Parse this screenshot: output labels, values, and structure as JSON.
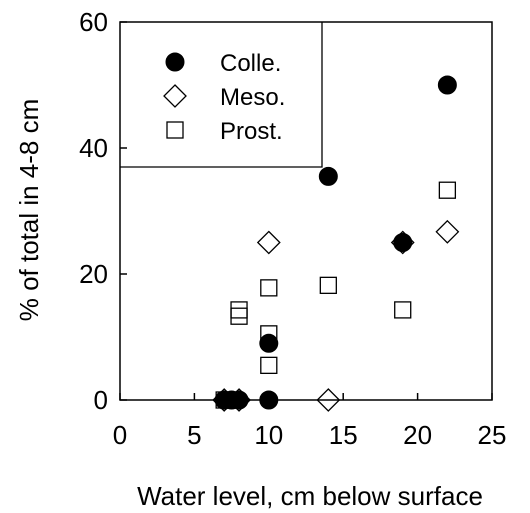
{
  "chart_data": {
    "type": "scatter",
    "xlabel": "Water level, cm below surface",
    "ylabel": "% of total in 4-8 cm",
    "xlim": [
      0,
      25
    ],
    "ylim": [
      0,
      60
    ],
    "xticks": [
      "0",
      "5",
      "10",
      "15",
      "20",
      "25"
    ],
    "yticks": [
      "0",
      "20",
      "40",
      "60"
    ],
    "grid": false,
    "legend_position": "top-left",
    "series": [
      {
        "name": "Colle.",
        "marker": "filled-circle",
        "points": [
          {
            "x": 7,
            "y": 0
          },
          {
            "x": 7.5,
            "y": 0
          },
          {
            "x": 8,
            "y": 0
          },
          {
            "x": 10,
            "y": 0
          },
          {
            "x": 10,
            "y": 9
          },
          {
            "x": 14,
            "y": 35.5
          },
          {
            "x": 19,
            "y": 25
          },
          {
            "x": 22,
            "y": 50
          }
        ]
      },
      {
        "name": "Meso.",
        "marker": "open-diamond",
        "points": [
          {
            "x": 7,
            "y": 0
          },
          {
            "x": 8,
            "y": 0
          },
          {
            "x": 10,
            "y": 25
          },
          {
            "x": 14,
            "y": 0
          },
          {
            "x": 19,
            "y": 25
          },
          {
            "x": 22,
            "y": 26.7
          }
        ]
      },
      {
        "name": "Prost.",
        "marker": "open-square",
        "points": [
          {
            "x": 7,
            "y": 0
          },
          {
            "x": 8,
            "y": 14.3
          },
          {
            "x": 8,
            "y": 13.3
          },
          {
            "x": 10,
            "y": 17.8
          },
          {
            "x": 10,
            "y": 10.5
          },
          {
            "x": 10,
            "y": 5.5
          },
          {
            "x": 14,
            "y": 18.2
          },
          {
            "x": 19,
            "y": 14.3
          },
          {
            "x": 22,
            "y": 33.3
          }
        ]
      }
    ]
  }
}
